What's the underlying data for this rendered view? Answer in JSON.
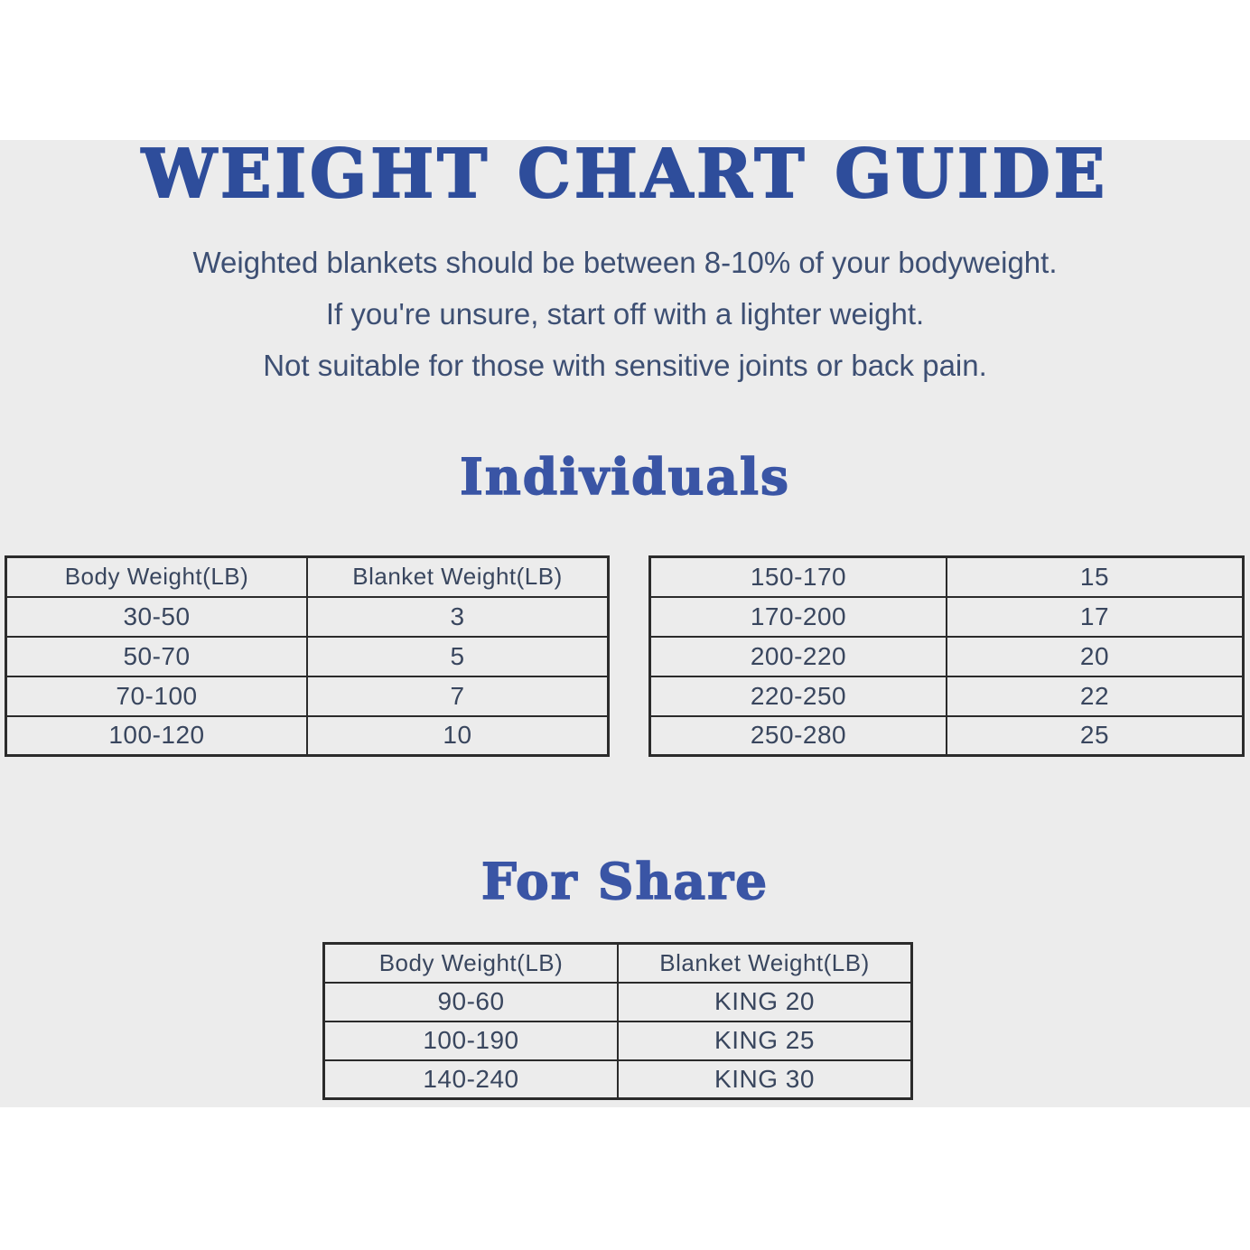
{
  "page": {
    "title": "WEIGHT CHART GUIDE",
    "subtitle_lines": [
      "Weighted blankets should be between 8-10% of your bodyweight.",
      "If you're unsure, start off with a lighter weight.",
      "Not suitable for those with sensitive joints or back pain."
    ],
    "section_individuals_heading": "Individuals",
    "section_for_share_heading": "For Share"
  },
  "colors": {
    "background": "#ffffff",
    "panel": "#ececec",
    "title_blue": "#2e4d9b",
    "heading_blue": "#3a55a5",
    "body_text": "#3d4f73",
    "table_text": "#39465e",
    "table_border": "#2b2b2b"
  },
  "chart_data": [
    {
      "type": "table",
      "name": "individuals-left-table",
      "columns": [
        "Body Weight(LB)",
        "Blanket Weight(LB)"
      ],
      "rows": [
        [
          "30-50",
          "3"
        ],
        [
          "50-70",
          "5"
        ],
        [
          "70-100",
          "7"
        ],
        [
          "100-120",
          "10"
        ]
      ]
    },
    {
      "type": "table",
      "name": "individuals-right-table",
      "columns": [],
      "rows": [
        [
          "150-170",
          "15"
        ],
        [
          "170-200",
          "17"
        ],
        [
          "200-220",
          "20"
        ],
        [
          "220-250",
          "22"
        ],
        [
          "250-280",
          "25"
        ]
      ]
    },
    {
      "type": "table",
      "name": "for-share-table",
      "columns": [
        "Body Weight(LB)",
        "Blanket Weight(LB)"
      ],
      "rows": [
        [
          "90-60",
          "KING 20"
        ],
        [
          "100-190",
          "KING 25"
        ],
        [
          "140-240",
          "KING 30"
        ]
      ]
    }
  ]
}
